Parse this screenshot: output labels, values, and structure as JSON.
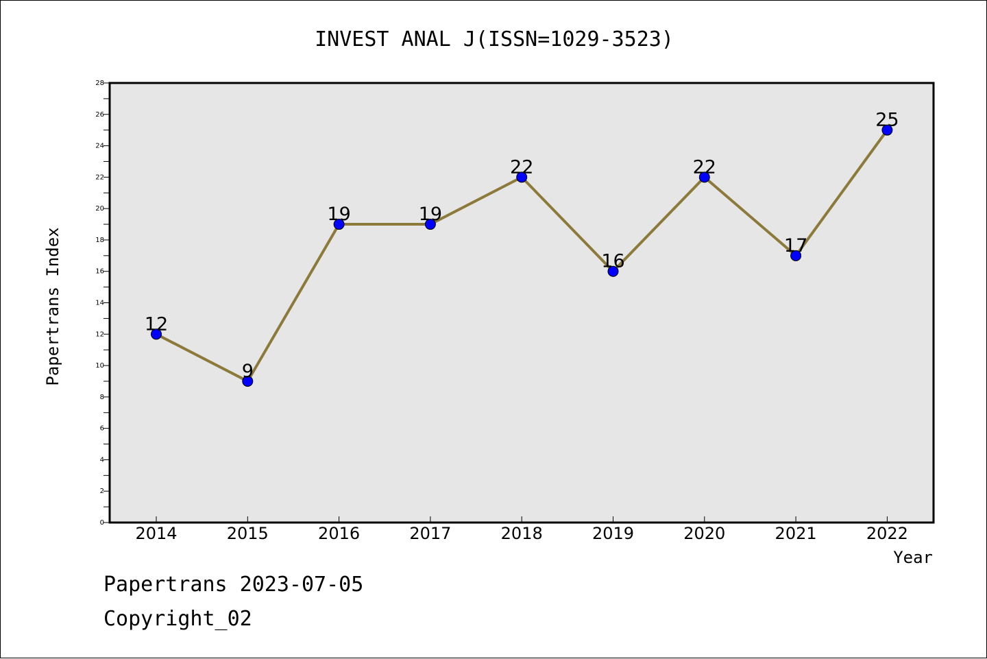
{
  "chart_data": {
    "type": "line",
    "title": "INVEST ANAL J(ISSN=1029-3523)",
    "xlabel": "Year",
    "ylabel": "Papertrans Index",
    "categories": [
      "2014",
      "2015",
      "2016",
      "2017",
      "2018",
      "2019",
      "2020",
      "2021",
      "2022"
    ],
    "series": [
      {
        "values": [
          12,
          9,
          19,
          19,
          22,
          16,
          22,
          17,
          25
        ]
      }
    ],
    "ylim": [
      0,
      28
    ],
    "yticks": [
      0,
      2,
      4,
      6,
      8,
      10,
      12,
      14,
      16,
      18,
      20,
      22,
      24,
      26,
      28
    ],
    "grid": false,
    "data_labels": true,
    "colors": {
      "line": "#8c7a3a",
      "marker": "#0000ff",
      "plot_bg": "#e6e6e6"
    }
  },
  "footer": {
    "line1": "Papertrans 2023-07-05",
    "line2": "Copyright_02"
  }
}
